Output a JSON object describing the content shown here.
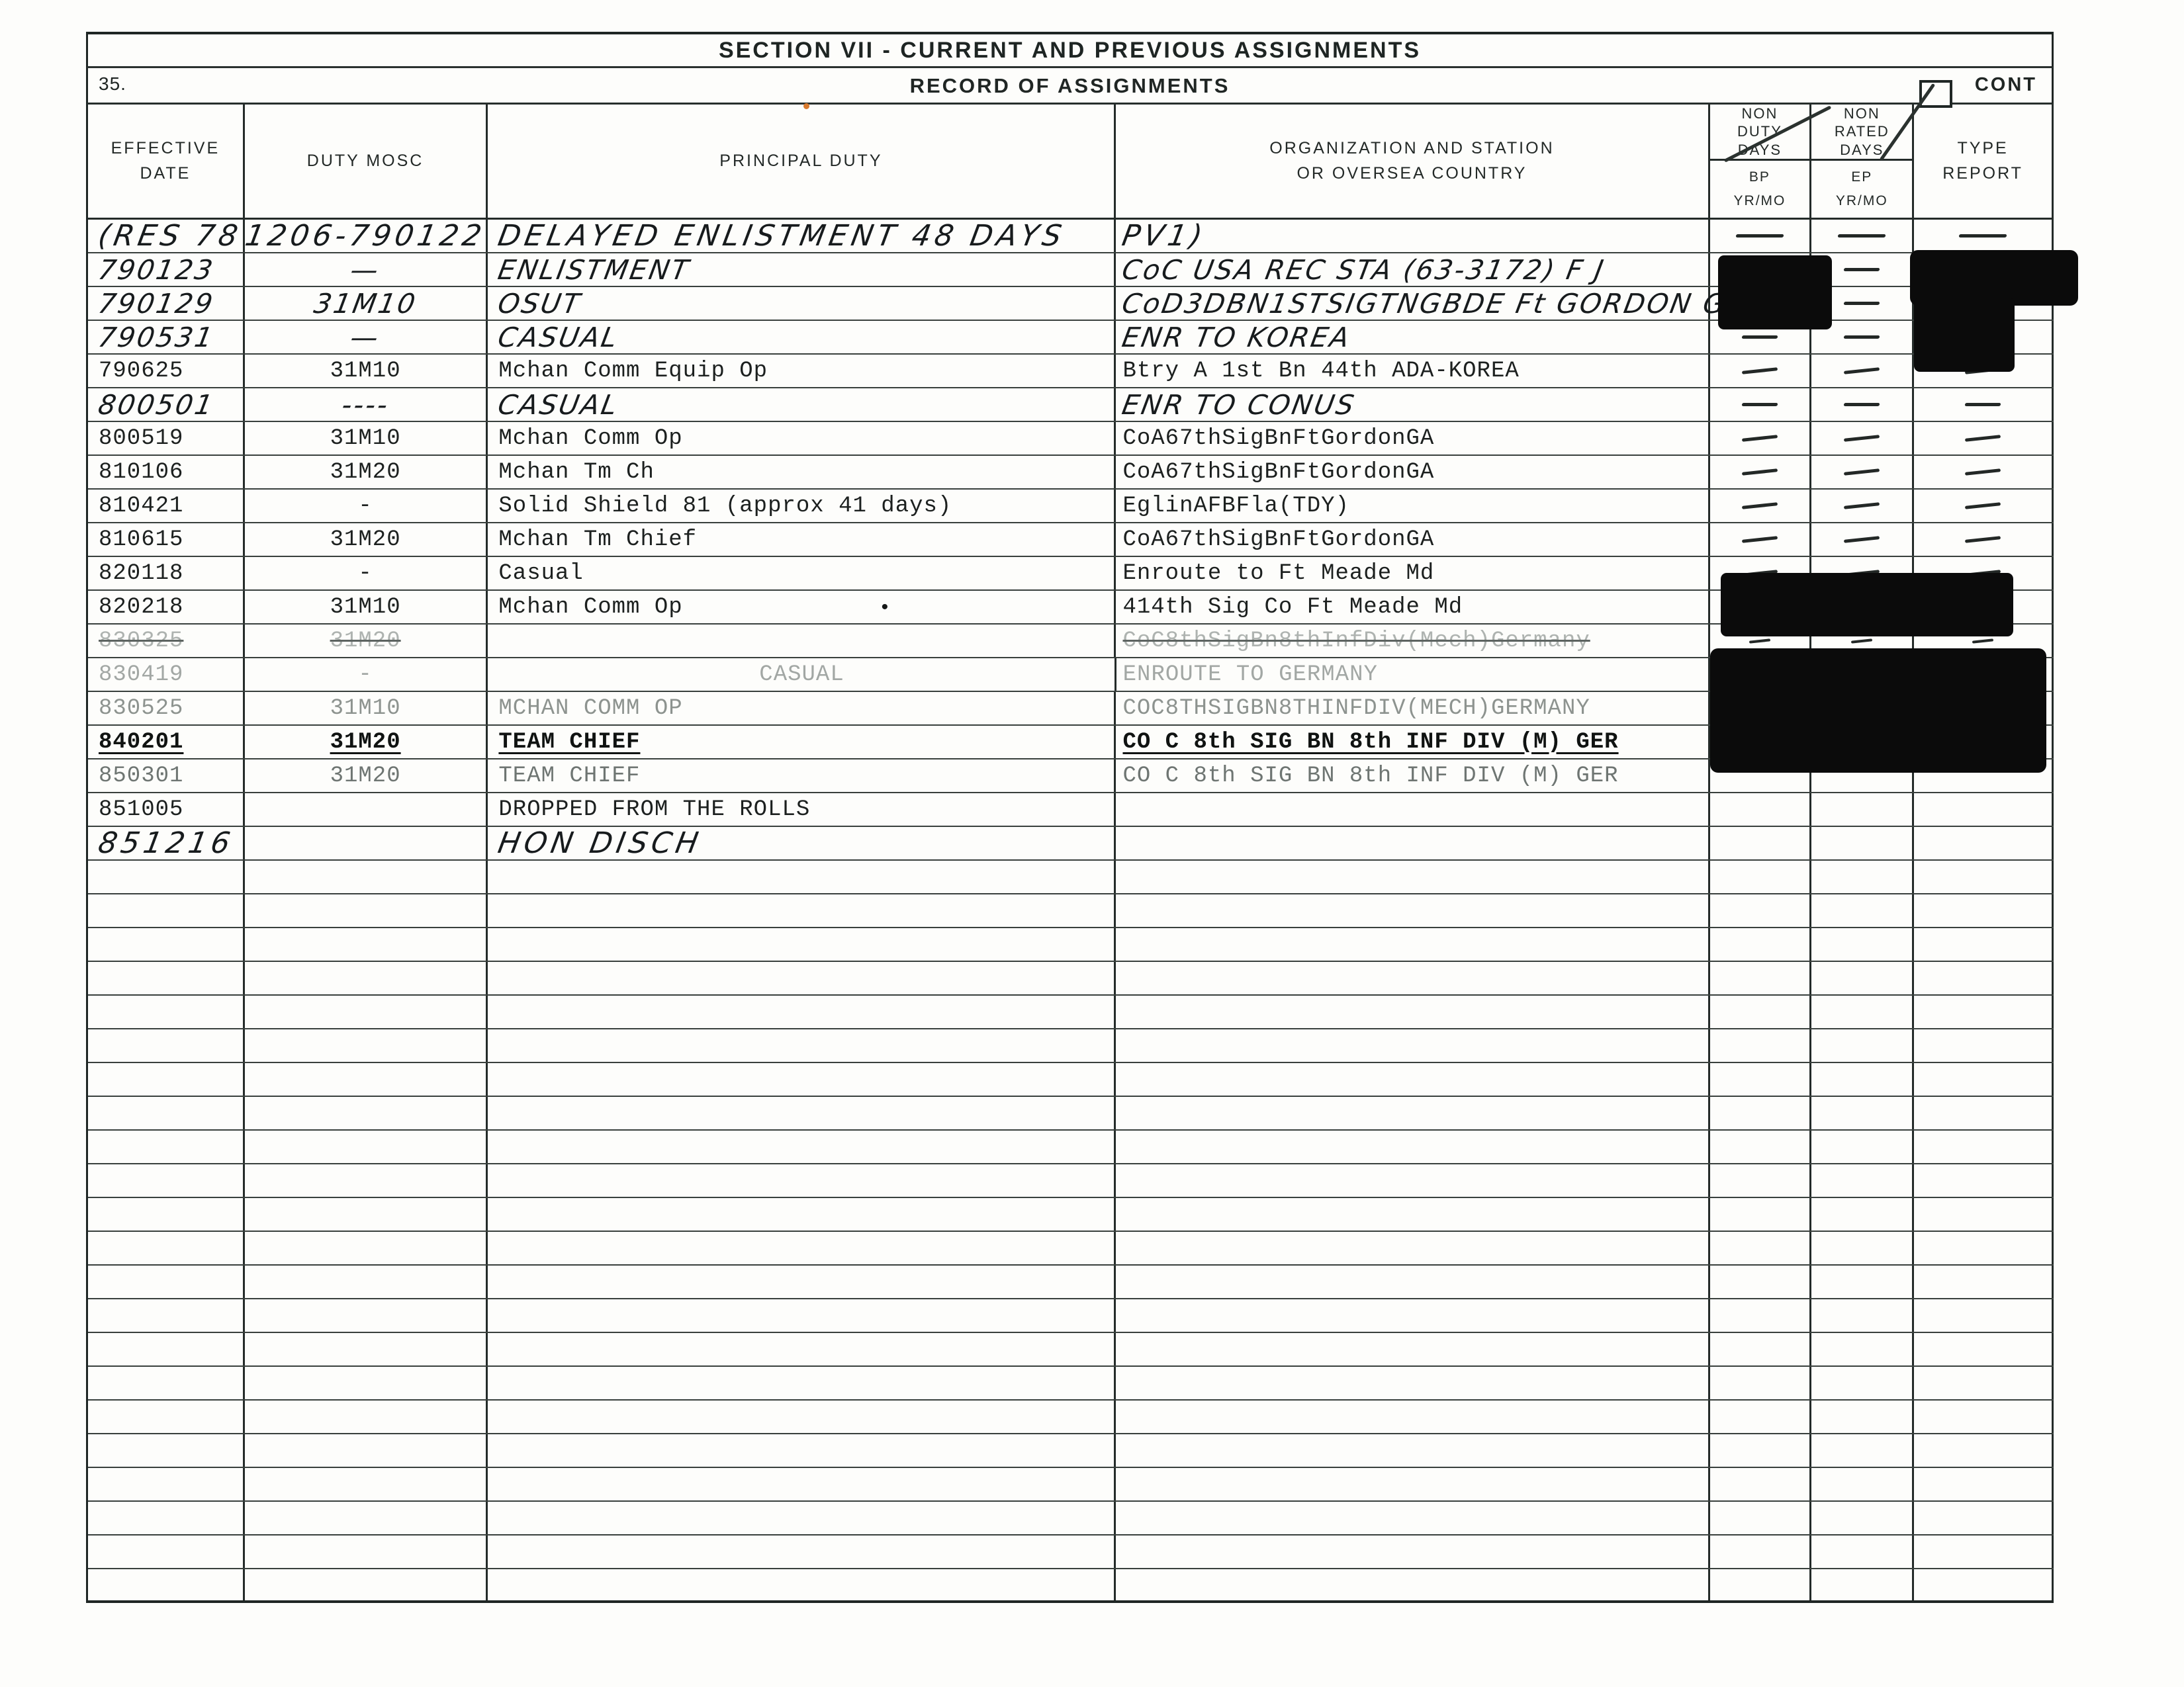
{
  "document": {
    "section_title": "SECTION VII - CURRENT AND PREVIOUS ASSIGNMENTS",
    "item_number": "35.",
    "form_title": "RECORD OF ASSIGNMENTS",
    "cont_label": "CONT",
    "columns": [
      {
        "label": "EFFECTIVE\nDATE"
      },
      {
        "label": "DUTY MOSC"
      },
      {
        "label": "PRINCIPAL DUTY"
      },
      {
        "label": "ORGANIZATION AND STATION\nOR OVERSEA COUNTRY"
      },
      {
        "label": "NON\nDUTY\nDAYS",
        "sub": "BP\nYR/MO"
      },
      {
        "label": "NON\nRATED\nDAYS",
        "sub": "EP\nYR/MO"
      },
      {
        "label": "TYPE\nREPORT"
      }
    ],
    "rows": [
      {
        "date": "(RES 78",
        "mosc": "1206-790122",
        "duty": "DELAYED ENLISTMENT 48 DAYS",
        "org": "PV1)",
        "style": "hand",
        "flags": [
          "big",
          "dash_long"
        ],
        "dashes": [
          "c5",
          "c6",
          "c7"
        ]
      },
      {
        "date": "790123",
        "mosc": "—",
        "duty": "ENLISTMENT",
        "org": "CoC USA REC STA (63-3172) F J",
        "style": "hand",
        "flags": [],
        "dashes": [
          "c6"
        ]
      },
      {
        "date": "790129",
        "mosc": "31M10",
        "duty": "OSUT",
        "org": "CoD3DBN1STSIGTNGBDE Ft GORDON GA",
        "style": "hand",
        "flags": [],
        "dashes": [
          "c6"
        ]
      },
      {
        "date": "790531",
        "mosc": "—",
        "duty": "CASUAL",
        "org": "ENR TO KOREA",
        "style": "hand",
        "flags": [],
        "dashes": [
          "c5",
          "c6"
        ]
      },
      {
        "date": "790625",
        "mosc": "31M10",
        "duty": "Mchan Comm Equip Op",
        "org": "Btry A 1st Bn 44th ADA-KOREA",
        "style": "typed",
        "flags": [],
        "dashes": [
          "c5",
          "c6",
          "c7"
        ]
      },
      {
        "date": "800501",
        "mosc": "----",
        "duty": "CASUAL",
        "org": "ENR TO CONUS",
        "style": "hand",
        "flags": [],
        "dashes": [
          "c5",
          "c6",
          "c7"
        ]
      },
      {
        "date": "800519",
        "mosc": "31M10",
        "duty": "Mchan Comm Op",
        "org": "CoA67thSigBnFtGordonGA",
        "style": "typed",
        "flags": [],
        "dashes": [
          "c5",
          "c6",
          "c7"
        ]
      },
      {
        "date": "810106",
        "mosc": "31M20",
        "duty": "Mchan Tm Ch",
        "org": "CoA67thSigBnFtGordonGA",
        "style": "typed",
        "flags": [],
        "dashes": [
          "c5",
          "c6",
          "c7"
        ]
      },
      {
        "date": "810421",
        "mosc": "-",
        "duty": "Solid Shield 81 (approx 41 days)",
        "org": "EglinAFBFla(TDY)",
        "style": "typed",
        "flags": [],
        "dashes": [
          "c5",
          "c6",
          "c7"
        ]
      },
      {
        "date": "810615",
        "mosc": "31M20",
        "duty": "Mchan Tm Chief",
        "org": "CoA67thSigBnFtGordonGA",
        "style": "typed",
        "flags": [],
        "dashes": [
          "c5",
          "c6",
          "c7"
        ]
      },
      {
        "date": "820118",
        "mosc": "-",
        "duty": "Casual",
        "org": "Enroute to Ft Meade Md",
        "style": "typed",
        "flags": [],
        "dashes": [
          "c5",
          "c6",
          "c7"
        ]
      },
      {
        "date": "820218",
        "mosc": "31M10",
        "duty": "Mchan Comm Op",
        "org": "414th Sig Co Ft Meade Md",
        "style": "typed",
        "flags": [
          "bullet"
        ],
        "dashes": []
      },
      {
        "date": "830325",
        "mosc": "31M20",
        "duty": "",
        "org": "CoC8thSigBn8thInfDiv(Mech)Germany",
        "style": "faint1",
        "flags": [
          "strike",
          "dash_small"
        ],
        "dashes": [
          "c5",
          "c6",
          "c7"
        ]
      },
      {
        "date": "830419",
        "mosc": "-",
        "duty": "CASUAL",
        "org": "ENROUTE TO GERMANY",
        "style": "faint2",
        "flags": [
          "duty_center"
        ],
        "dashes": []
      },
      {
        "date": "830525",
        "mosc": "31M10",
        "duty": "MCHAN COMM OP",
        "org": "COC8THSIGBN8THINFDIV(MECH)GERMANY",
        "style": "faint3",
        "flags": [],
        "dashes": []
      },
      {
        "date": "840201",
        "mosc": "31M20",
        "duty": "TEAM CHIEF",
        "org": "CO C 8th SIG BN 8th INF DIV (M) GER",
        "style": "bold",
        "flags": [],
        "dashes": []
      },
      {
        "date": "850301",
        "mosc": "31M20",
        "duty": "TEAM CHIEF",
        "org": "CO C 8th SIG BN 8th INF DIV (M) GER",
        "style": "gray",
        "flags": [],
        "dashes": []
      },
      {
        "date": "851005",
        "mosc": "",
        "duty": "DROPPED FROM THE ROLLS",
        "org": "",
        "style": "typed",
        "flags": [],
        "dashes": []
      },
      {
        "date": "851216",
        "mosc": "",
        "duty": "HON DISCH",
        "org": "",
        "style": "hand",
        "flags": [
          "big"
        ],
        "dashes": []
      }
    ],
    "empty_row_count": 22
  }
}
